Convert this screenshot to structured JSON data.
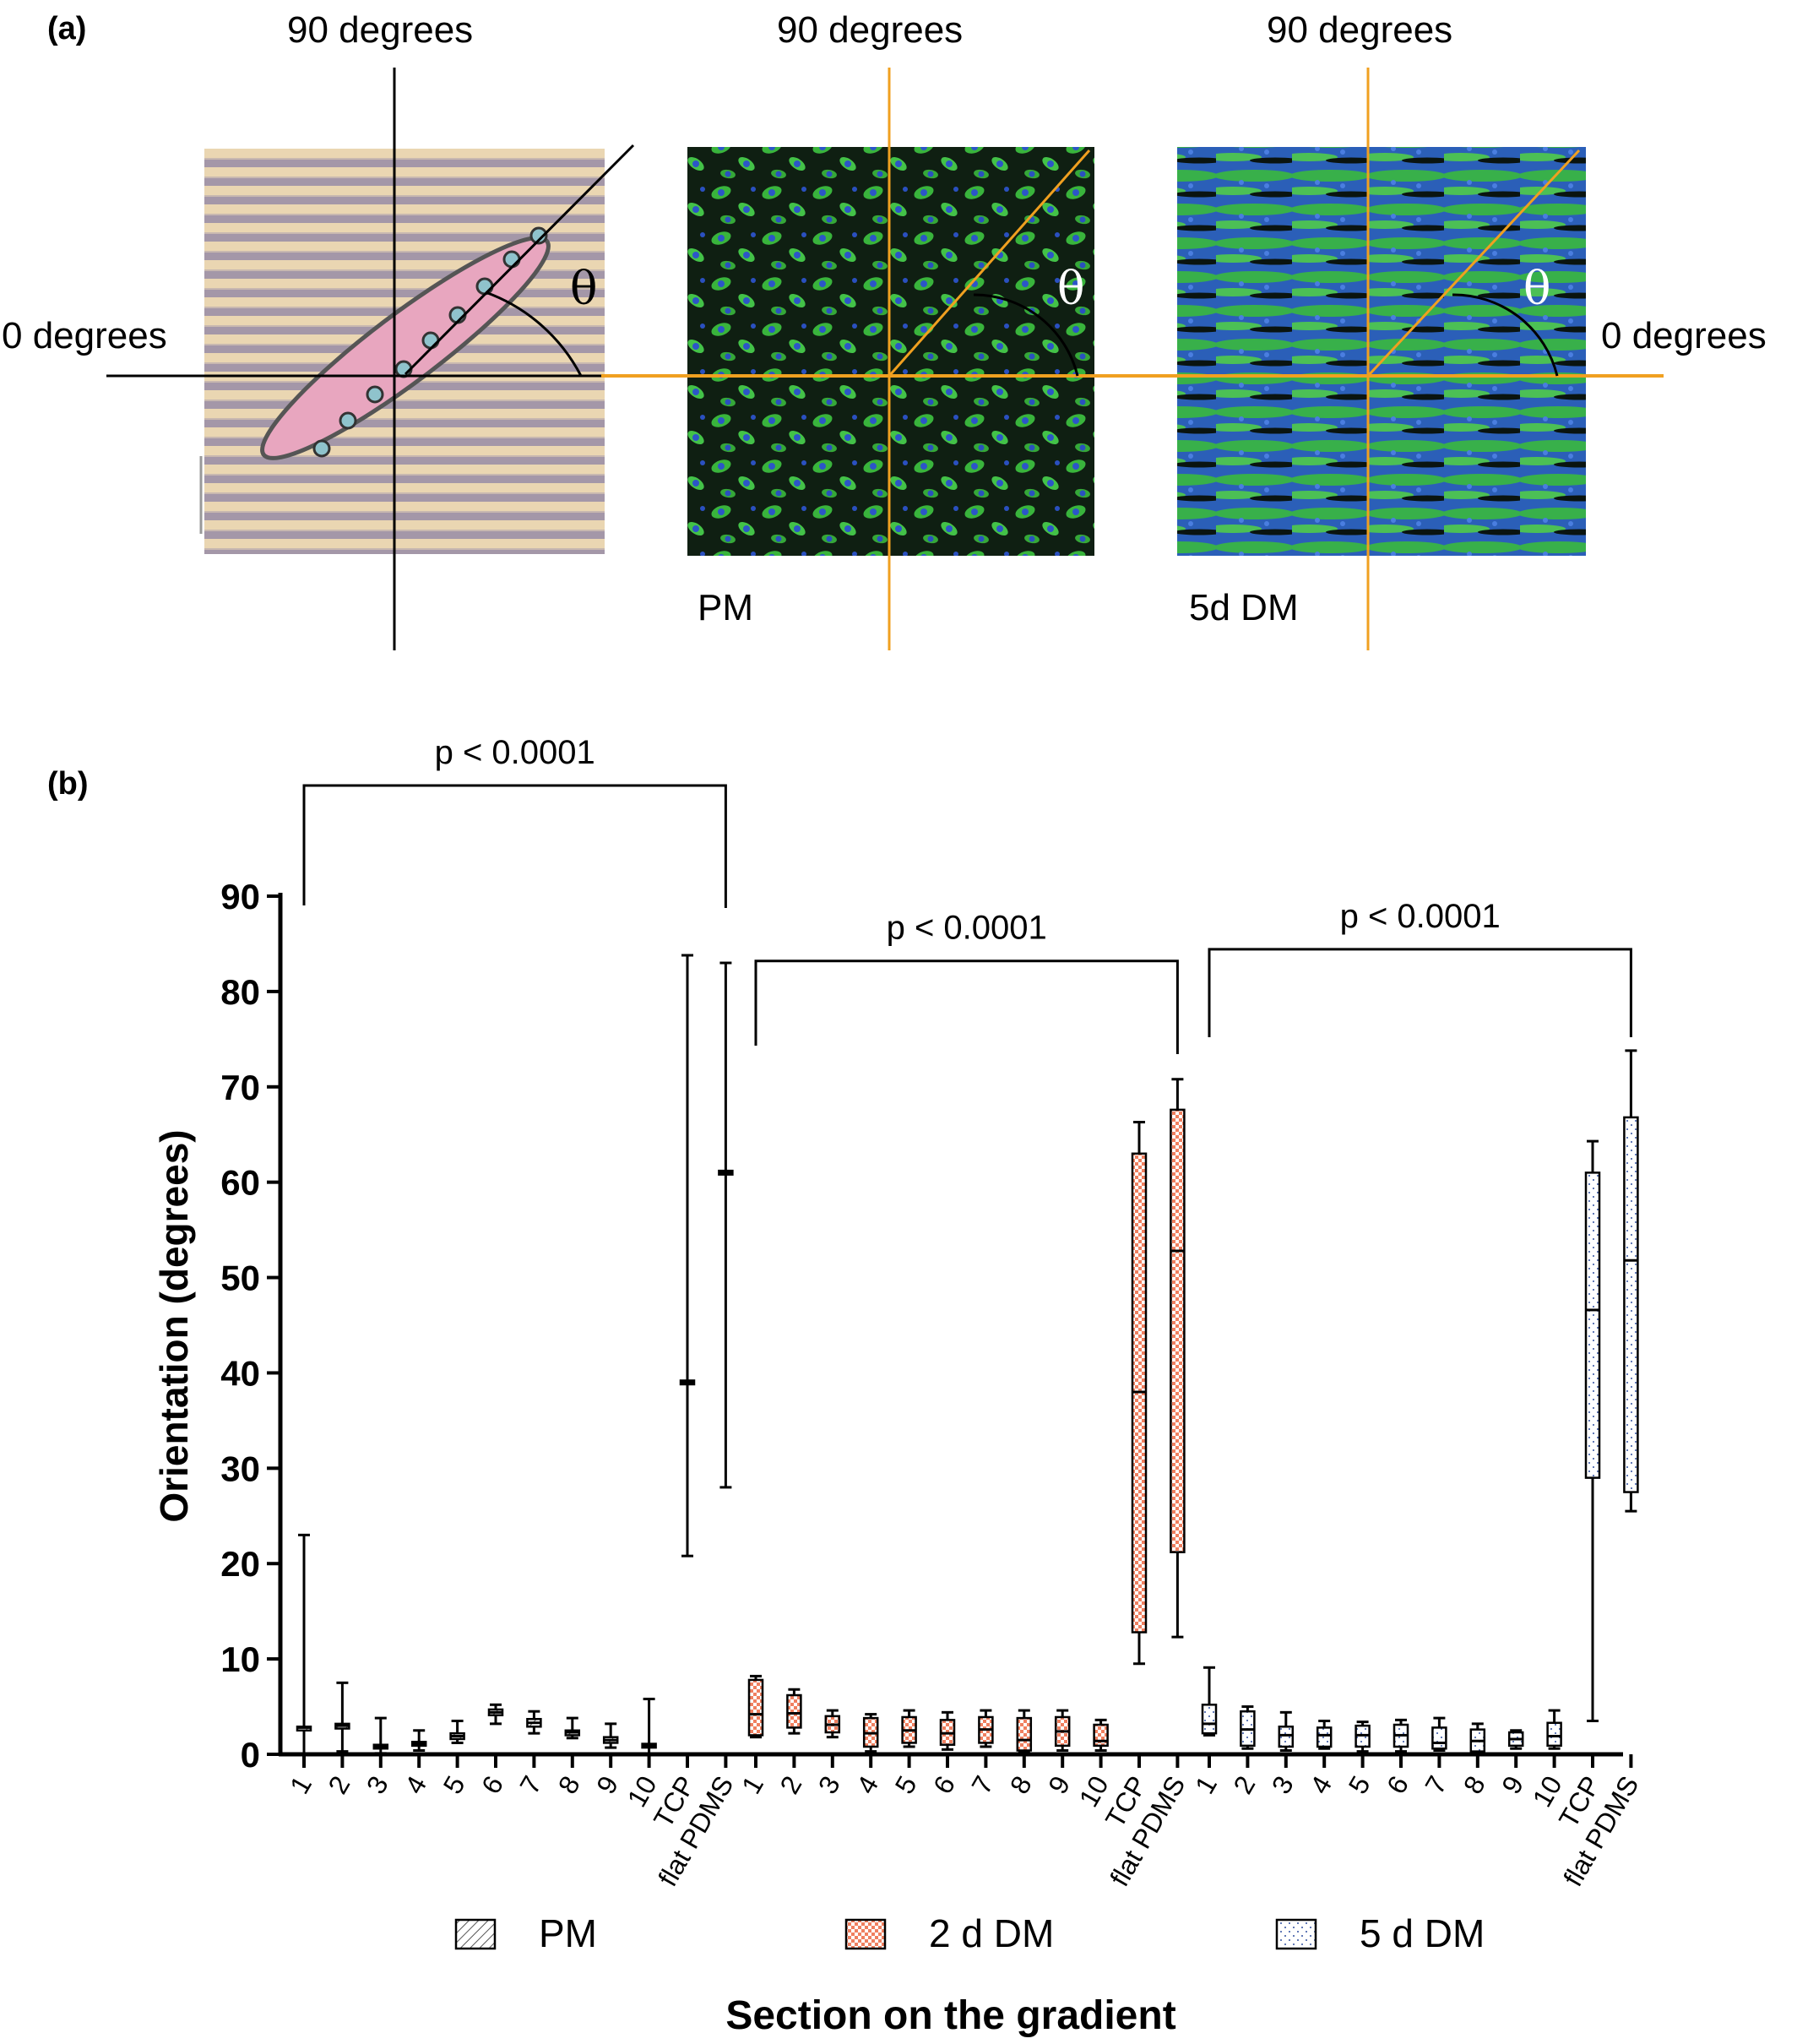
{
  "panel_a": {
    "label": "(a)",
    "angle_up_label": "90 degrees",
    "angle_zero_label": "0 degrees",
    "theta": "θ",
    "panels": [
      {
        "name": "schematic",
        "caption": ""
      },
      {
        "name": "pm",
        "caption": "PM"
      },
      {
        "name": "5d-dm",
        "caption": "5d DM"
      }
    ],
    "colors": {
      "axis_orange": "#f0a020",
      "cell_pink": "#dc7fa0",
      "fluor_green": "#3fbf3f",
      "fluor_blue": "#2456c8",
      "stripe_light": "#e8d5b0",
      "stripe_dark": "#9a8aa0"
    }
  },
  "panel_b_label": "(b)",
  "chart_data": {
    "type": "box",
    "ylabel": "Orientation (degrees)",
    "xlabel": "Section on the gradient",
    "ylim": [
      0,
      90
    ],
    "yticks": [
      0,
      10,
      20,
      30,
      40,
      50,
      60,
      70,
      80,
      90
    ],
    "categories": [
      "1",
      "2",
      "3",
      "4",
      "5",
      "6",
      "7",
      "8",
      "9",
      "10",
      "TCP",
      "flat PDMS"
    ],
    "legend": [
      {
        "name": "PM",
        "pattern": "diagonal-hatch"
      },
      {
        "name": "2 d DM",
        "pattern": "orange-checker"
      },
      {
        "name": "5 d DM",
        "pattern": "dotted"
      }
    ],
    "legend_position": "bottom",
    "groups": [
      {
        "name": "PM",
        "pattern": "diagonal-hatch",
        "significance": "p < 0.0001",
        "boxes": [
          {
            "min": 0,
            "q1": 2.5,
            "median": 2.8,
            "q3": 2.9,
            "max": 23
          },
          {
            "min": 0.3,
            "q1": 2.7,
            "median": 3.0,
            "q3": 3.2,
            "max": 7.5
          },
          {
            "min": 0.1,
            "q1": 0.6,
            "median": 0.8,
            "q3": 1.0,
            "max": 3.8
          },
          {
            "min": 0.4,
            "q1": 0.9,
            "median": 1.1,
            "q3": 1.3,
            "max": 2.5
          },
          {
            "min": 1.2,
            "q1": 1.6,
            "median": 1.9,
            "q3": 2.2,
            "max": 3.5
          },
          {
            "min": 3.2,
            "q1": 4.1,
            "median": 4.4,
            "q3": 4.7,
            "max": 5.2
          },
          {
            "min": 2.2,
            "q1": 2.9,
            "median": 3.3,
            "q3": 3.7,
            "max": 4.5
          },
          {
            "min": 1.7,
            "q1": 2.0,
            "median": 2.3,
            "q3": 2.5,
            "max": 3.8
          },
          {
            "min": 0.7,
            "q1": 1.2,
            "median": 1.5,
            "q3": 1.8,
            "max": 3.2
          },
          {
            "min": 0,
            "q1": 0.7,
            "median": 0.9,
            "q3": 1.1,
            "max": 5.8
          },
          {
            "min": 20.8,
            "q1": 38.8,
            "median": 39.0,
            "q3": 39.2,
            "max": 83.8
          },
          {
            "min": 28.0,
            "q1": 60.8,
            "median": 61.0,
            "q3": 61.2,
            "max": 83.0
          }
        ]
      },
      {
        "name": "2 d DM",
        "pattern": "orange-checker",
        "significance": "p < 0.0001",
        "boxes": [
          {
            "min": 1.8,
            "q1": 2.0,
            "median": 4.2,
            "q3": 7.8,
            "max": 8.2
          },
          {
            "min": 2.2,
            "q1": 2.8,
            "median": 4.3,
            "q3": 6.2,
            "max": 6.8
          },
          {
            "min": 1.8,
            "q1": 2.3,
            "median": 3.1,
            "q3": 4.0,
            "max": 4.6
          },
          {
            "min": 0.3,
            "q1": 0.8,
            "median": 2.2,
            "q3": 3.8,
            "max": 4.2
          },
          {
            "min": 0.8,
            "q1": 1.2,
            "median": 2.5,
            "q3": 3.9,
            "max": 4.6
          },
          {
            "min": 0.5,
            "q1": 1.0,
            "median": 2.2,
            "q3": 3.6,
            "max": 4.4
          },
          {
            "min": 0.8,
            "q1": 1.2,
            "median": 2.6,
            "q3": 3.9,
            "max": 4.6
          },
          {
            "min": 0.2,
            "q1": 0.4,
            "median": 1.5,
            "q3": 3.8,
            "max": 4.6
          },
          {
            "min": 0.4,
            "q1": 0.9,
            "median": 2.4,
            "q3": 3.9,
            "max": 4.6
          },
          {
            "min": 0.4,
            "q1": 0.9,
            "median": 1.4,
            "q3": 3.1,
            "max": 3.6
          },
          {
            "min": 9.5,
            "q1": 12.8,
            "median": 38.0,
            "q3": 63.0,
            "max": 66.3
          },
          {
            "min": 12.3,
            "q1": 21.2,
            "median": 52.8,
            "q3": 67.6,
            "max": 70.8
          }
        ]
      },
      {
        "name": "5 d DM",
        "pattern": "dotted",
        "significance": "p < 0.0001",
        "boxes": [
          {
            "min": 2.0,
            "q1": 2.2,
            "median": 3.2,
            "q3": 5.2,
            "max": 9.1
          },
          {
            "min": 0.6,
            "q1": 0.9,
            "median": 2.6,
            "q3": 4.5,
            "max": 5.0
          },
          {
            "min": 0.4,
            "q1": 0.8,
            "median": 2.0,
            "q3": 2.9,
            "max": 4.4
          },
          {
            "min": 0.6,
            "q1": 0.8,
            "median": 2.0,
            "q3": 2.8,
            "max": 3.5
          },
          {
            "min": 0.3,
            "q1": 0.8,
            "median": 2.0,
            "q3": 3.0,
            "max": 3.4
          },
          {
            "min": 0.3,
            "q1": 0.8,
            "median": 2.0,
            "q3": 3.1,
            "max": 3.6
          },
          {
            "min": 0.4,
            "q1": 0.6,
            "median": 1.2,
            "q3": 2.8,
            "max": 3.8
          },
          {
            "min": 0.2,
            "q1": 0.3,
            "median": 1.4,
            "q3": 2.6,
            "max": 3.2
          },
          {
            "min": 0.6,
            "q1": 0.9,
            "median": 1.6,
            "q3": 2.3,
            "max": 2.5
          },
          {
            "min": 0.6,
            "q1": 0.9,
            "median": 1.9,
            "q3": 3.3,
            "max": 4.6
          },
          {
            "min": 3.5,
            "q1": 29.0,
            "median": 46.6,
            "q3": 61.0,
            "max": 64.3
          },
          {
            "min": 25.5,
            "q1": 27.5,
            "median": 51.8,
            "q3": 66.8,
            "max": 73.8
          }
        ]
      }
    ]
  }
}
